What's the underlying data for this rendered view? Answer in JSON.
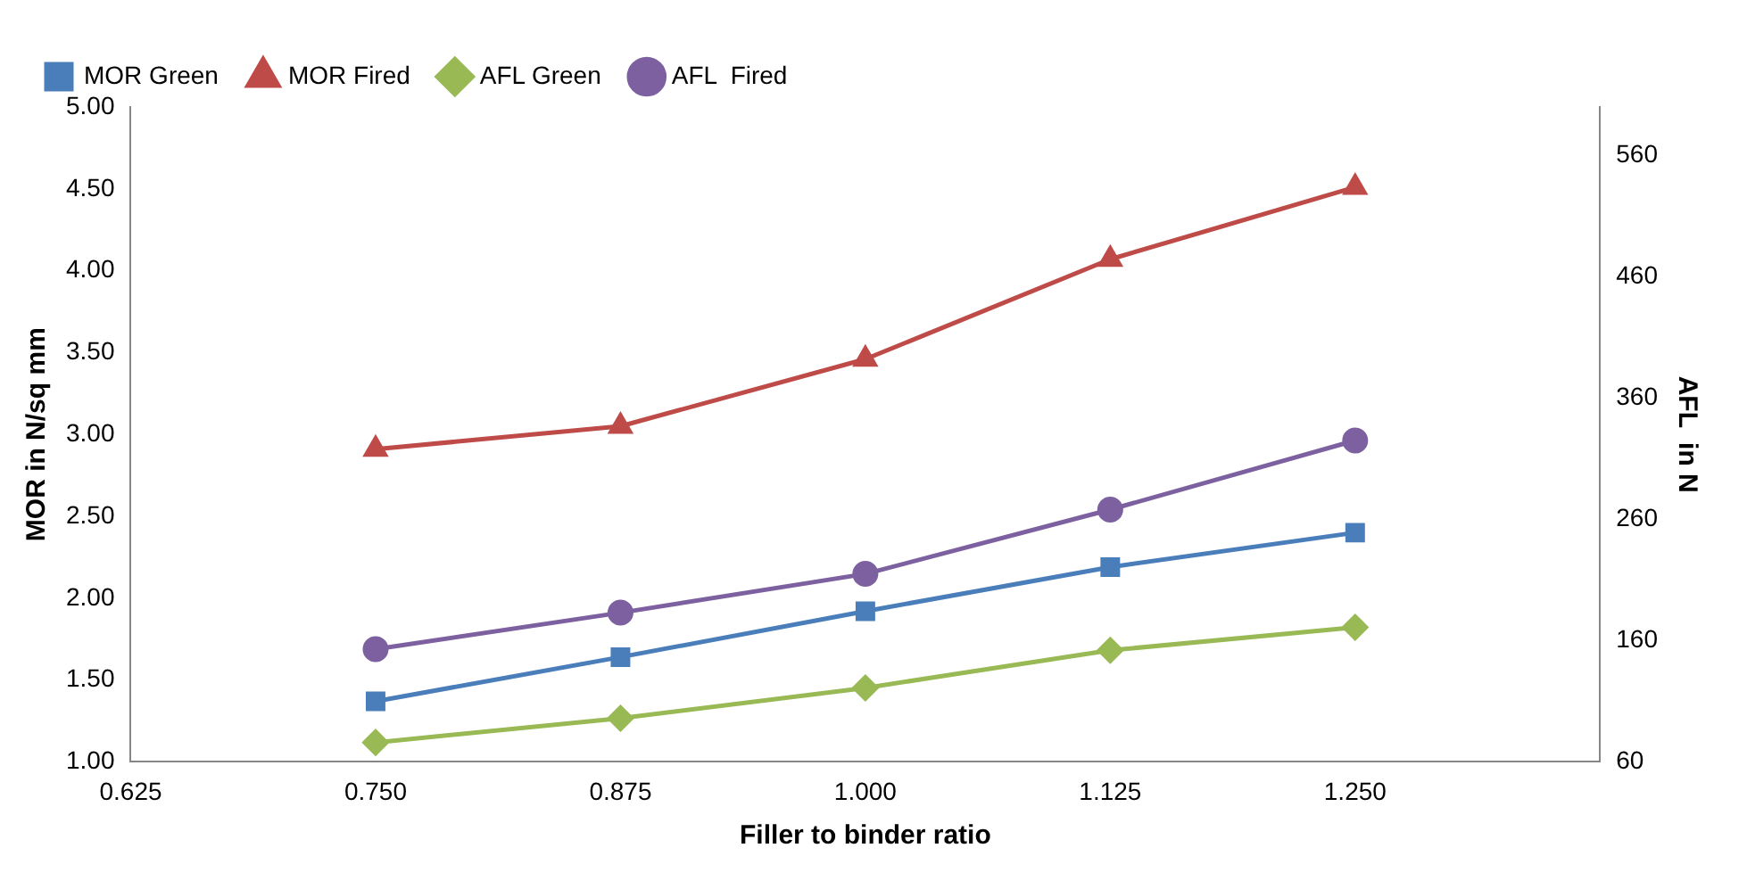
{
  "chart_data": {
    "type": "line",
    "xlabel": "Filler to binder ratio",
    "ylabel": "MOR in N/sq mm",
    "y2label": "AFL  in N",
    "x": [
      0.75,
      0.875,
      1.0,
      1.125,
      1.25
    ],
    "xlim": [
      0.625,
      1.375
    ],
    "xticks": [
      {
        "value": 0.625,
        "label": "0.625"
      },
      {
        "value": 0.75,
        "label": "0.750"
      },
      {
        "value": 0.875,
        "label": "0.875"
      },
      {
        "value": 1.0,
        "label": "1.000"
      },
      {
        "value": 1.125,
        "label": "1.125"
      },
      {
        "value": 1.25,
        "label": "1.250"
      },
      {
        "value": 1.375,
        "label": null
      }
    ],
    "ylim": [
      1,
      5
    ],
    "yticks": [
      {
        "value": 1,
        "label": "1.00"
      },
      {
        "value": 1.5,
        "label": "1.50"
      },
      {
        "value": 2,
        "label": "2.00"
      },
      {
        "value": 2.5,
        "label": "2.50"
      },
      {
        "value": 3,
        "label": "3.00"
      },
      {
        "value": 3.5,
        "label": "3.50"
      },
      {
        "value": 4,
        "label": "4.00"
      },
      {
        "value": 4.5,
        "label": "4.50"
      },
      {
        "value": 5,
        "label": "5.00"
      }
    ],
    "y2lim": [
      60,
      600
    ],
    "y2ticks": [
      60,
      160,
      260,
      360,
      460,
      560
    ],
    "grid": false,
    "legend": "top left",
    "series": [
      {
        "name": "MOR Green",
        "color": "#4a7ebb",
        "marker": "square",
        "values": [
          1.37,
          1.64,
          1.92,
          2.19,
          2.4
        ]
      },
      {
        "name": "MOR Fired",
        "color": "#be4b48",
        "marker": "triangle",
        "values": [
          2.91,
          3.05,
          3.46,
          4.07,
          4.51
        ]
      },
      {
        "name": "AFL Green",
        "color": "#98b954",
        "marker": "diamond",
        "axis": "y2",
        "values": [
          76,
          96,
          121,
          152,
          171
        ]
      },
      {
        "name": "AFL  Fired",
        "color": "#7d60a0",
        "marker": "circle",
        "axis": "y2",
        "values": [
          153,
          183,
          215,
          268,
          325
        ]
      }
    ]
  }
}
